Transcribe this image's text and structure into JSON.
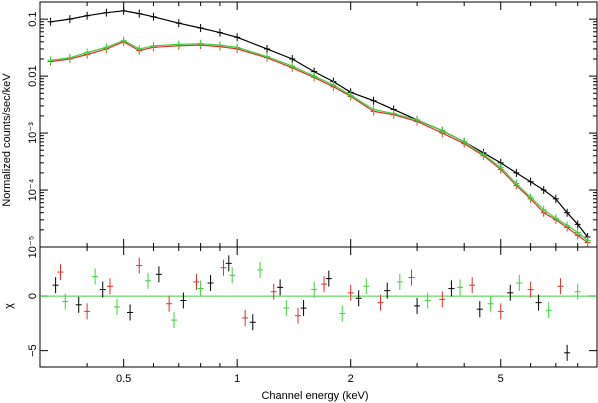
{
  "chart_data": [
    {
      "type": "scatter",
      "title": "",
      "xlabel": "Channel energy (keV)",
      "ylabel": "Normalized counts/sec/keV",
      "xscale": "log",
      "yscale": "log",
      "xlim": [
        0.3,
        9.0
      ],
      "ylim": [
        1e-05,
        0.2
      ],
      "x_ticks": [
        "0.5",
        "1",
        "2",
        "5"
      ],
      "y_ticks": [
        "0.1",
        "0.01",
        "10⁻³",
        "10⁻⁴",
        "10⁻⁵"
      ],
      "grid": false,
      "legend": "none",
      "series": [
        {
          "color": "#000000",
          "x": [
            0.32,
            0.36,
            0.4,
            0.45,
            0.5,
            0.55,
            0.6,
            0.7,
            0.8,
            0.9,
            1.0,
            1.2,
            1.4,
            1.6,
            1.8,
            2.0,
            2.3,
            2.6,
            3.0,
            3.5,
            4.0,
            4.5,
            5.0,
            5.5,
            6.0,
            6.5,
            7.0,
            7.5,
            8.0,
            8.5
          ],
          "y": [
            0.09,
            0.1,
            0.115,
            0.13,
            0.14,
            0.125,
            0.11,
            0.085,
            0.07,
            0.058,
            0.048,
            0.03,
            0.02,
            0.012,
            0.008,
            0.0052,
            0.0037,
            0.0026,
            0.0017,
            0.0011,
            0.0007,
            0.00045,
            0.0003,
            0.0002,
            0.00014,
            0.0001,
            7e-05,
            4e-05,
            2.5e-05,
            1.5e-05
          ]
        },
        {
          "color": "#e0302a",
          "x": [
            0.32,
            0.36,
            0.4,
            0.45,
            0.5,
            0.55,
            0.6,
            0.7,
            0.8,
            0.9,
            1.0,
            1.2,
            1.4,
            1.6,
            1.8,
            2.0,
            2.3,
            2.6,
            3.0,
            3.5,
            4.0,
            4.5,
            5.0,
            5.5,
            6.0,
            6.5,
            7.0,
            7.5,
            8.0,
            8.5
          ],
          "y": [
            0.018,
            0.02,
            0.024,
            0.03,
            0.04,
            0.028,
            0.032,
            0.034,
            0.035,
            0.033,
            0.03,
            0.021,
            0.014,
            0.0095,
            0.0065,
            0.0044,
            0.0024,
            0.0021,
            0.0016,
            0.001,
            0.00065,
            0.0004,
            0.00023,
            0.00012,
            7e-05,
            4e-05,
            3e-05,
            2.2e-05,
            1.6e-05,
            1.2e-05
          ]
        },
        {
          "color": "#3cd23c",
          "x": [
            0.32,
            0.36,
            0.4,
            0.45,
            0.5,
            0.55,
            0.6,
            0.7,
            0.8,
            0.9,
            1.0,
            1.2,
            1.4,
            1.6,
            1.8,
            2.0,
            2.3,
            2.6,
            3.0,
            3.5,
            4.0,
            4.5,
            5.0,
            5.5,
            6.0,
            6.5,
            7.0,
            7.5,
            8.0,
            8.5
          ],
          "y": [
            0.019,
            0.021,
            0.026,
            0.032,
            0.042,
            0.03,
            0.034,
            0.036,
            0.037,
            0.035,
            0.032,
            0.022,
            0.015,
            0.01,
            0.007,
            0.0046,
            0.0026,
            0.0022,
            0.0017,
            0.0011,
            0.0007,
            0.00042,
            0.00025,
            0.00013,
            7.5e-05,
            4.5e-05,
            3.2e-05,
            2.4e-05,
            1.8e-05,
            1.3e-05
          ]
        }
      ]
    },
    {
      "type": "scatter",
      "title": "",
      "xlabel": "Channel energy (keV)",
      "ylabel": "χ",
      "xscale": "log",
      "xlim": [
        0.3,
        9.0
      ],
      "ylim": [
        -6.5,
        4.5
      ],
      "x_ticks": [
        "0.5",
        "1",
        "2",
        "5"
      ],
      "y_ticks": [
        "−5",
        "0"
      ],
      "grid": false,
      "legend": "none",
      "series": [
        {
          "color": "#000000",
          "x": [
            0.33,
            0.38,
            0.44,
            0.52,
            0.62,
            0.72,
            0.85,
            0.95,
            1.1,
            1.3,
            1.5,
            1.75,
            2.1,
            2.5,
            3.0,
            3.7,
            4.4,
            5.3,
            6.3,
            7.5
          ],
          "y": [
            1.0,
            -0.8,
            0.6,
            -1.5,
            2.0,
            -0.4,
            1.2,
            3.0,
            -2.4,
            0.8,
            -1.1,
            1.6,
            -0.2,
            0.5,
            -0.9,
            0.7,
            -1.2,
            0.3,
            -0.6,
            -5.2
          ]
        },
        {
          "color": "#e0302a",
          "x": [
            0.34,
            0.4,
            0.46,
            0.55,
            0.66,
            0.78,
            0.92,
            1.05,
            1.25,
            1.45,
            1.7,
            2.0,
            2.4,
            2.9,
            3.5,
            4.2,
            5.0,
            6.0,
            7.2
          ],
          "y": [
            2.2,
            -1.4,
            0.9,
            2.8,
            -0.7,
            1.3,
            2.6,
            -2.0,
            0.4,
            -1.8,
            1.1,
            0.3,
            -0.6,
            1.7,
            -0.3,
            1.0,
            -1.4,
            0.6,
            0.9
          ]
        },
        {
          "color": "#3cd23c",
          "x": [
            0.35,
            0.42,
            0.48,
            0.58,
            0.68,
            0.8,
            0.97,
            1.15,
            1.35,
            1.6,
            1.9,
            2.2,
            2.7,
            3.2,
            3.9,
            4.7,
            5.6,
            6.7,
            8.0
          ],
          "y": [
            -0.5,
            1.8,
            -1.0,
            1.4,
            -2.2,
            0.7,
            1.9,
            2.4,
            -1.1,
            0.6,
            -1.6,
            0.9,
            1.3,
            -0.4,
            0.8,
            -0.7,
            1.2,
            -1.3,
            0.4
          ]
        }
      ]
    }
  ]
}
